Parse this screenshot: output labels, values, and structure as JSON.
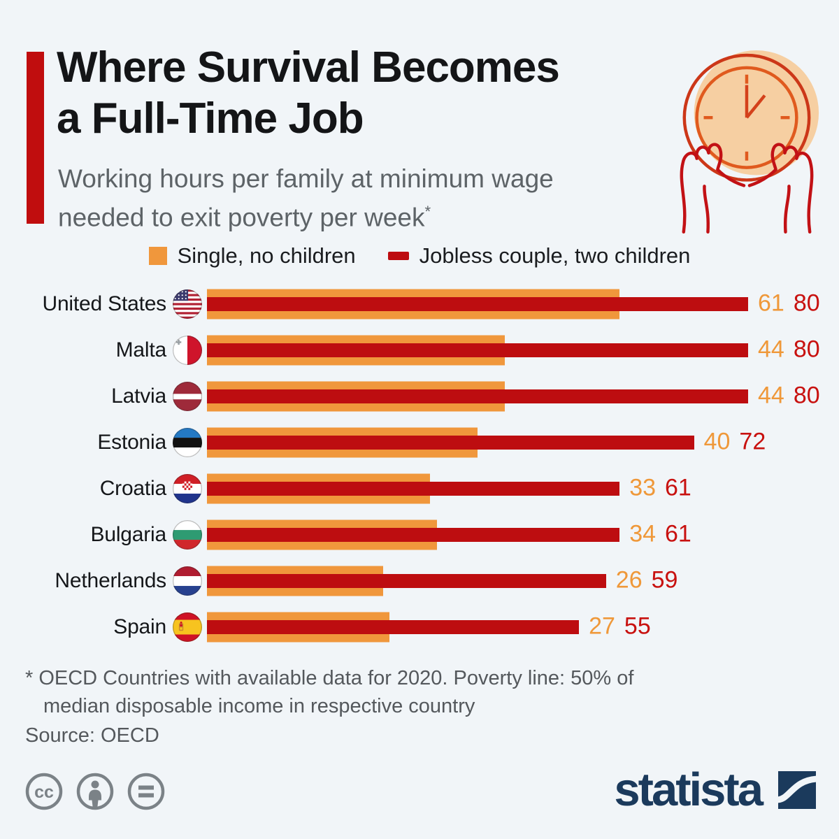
{
  "background_color": "#f1f5f8",
  "header": {
    "accent_color": "#c00d0e",
    "title_lines": [
      "Where Survival Becomes",
      "a Full-Time Job"
    ],
    "subtitle_lines": [
      "Working hours per family at minimum wage",
      "needed to exit poverty per week"
    ],
    "footnote_marker": "*"
  },
  "legend": {
    "items": [
      {
        "label": "Single, no children",
        "color": "#f0973c",
        "swatch": "square"
      },
      {
        "label": "Jobless couple, two children",
        "color": "#bd0d10",
        "swatch": "dash"
      }
    ]
  },
  "chart_data": {
    "type": "bar",
    "orientation": "horizontal",
    "title": "Where Survival Becomes a Full-Time Job",
    "subtitle": "Working hours per family at minimum wage needed to exit poverty per week*",
    "unit": "hours per week",
    "xlim": [
      0,
      80
    ],
    "grid": false,
    "legend_position": "top-center",
    "value_labels_position": "end-of-bar",
    "categories": [
      "United States",
      "Malta",
      "Latvia",
      "Estonia",
      "Croatia",
      "Bulgaria",
      "Netherlands",
      "Spain"
    ],
    "flags": [
      "us",
      "malta",
      "latvia",
      "estonia",
      "croatia",
      "bulgaria",
      "netherlands",
      "spain"
    ],
    "series": [
      {
        "name": "Single, no children",
        "color": "#f0973c",
        "values": [
          61,
          44,
          44,
          40,
          33,
          34,
          26,
          27
        ]
      },
      {
        "name": "Jobless couple, two children",
        "color": "#bd0d10",
        "values": [
          80,
          80,
          80,
          72,
          61,
          61,
          59,
          55
        ]
      }
    ],
    "value_text_colors": {
      "single": "#ef9839",
      "couple": "#c8110f"
    }
  },
  "footnote": {
    "line1": "* OECD Countries with available data for 2020. Poverty line: 50% of",
    "line2": "median disposable income in respective country",
    "source": "Source: OECD"
  },
  "footer": {
    "brand": "statista",
    "brand_color": "#1b3a5c",
    "license_icons": [
      "cc-icon",
      "attribution-icon",
      "equal-icon"
    ],
    "license_icon_color": "#7b8287"
  },
  "illustration": {
    "name": "hands-holding-clock",
    "face_color": "#f6cfa2",
    "ring_color": "#cc3718",
    "dial_color": "#e05a1e",
    "hands_color": "#c21115"
  }
}
